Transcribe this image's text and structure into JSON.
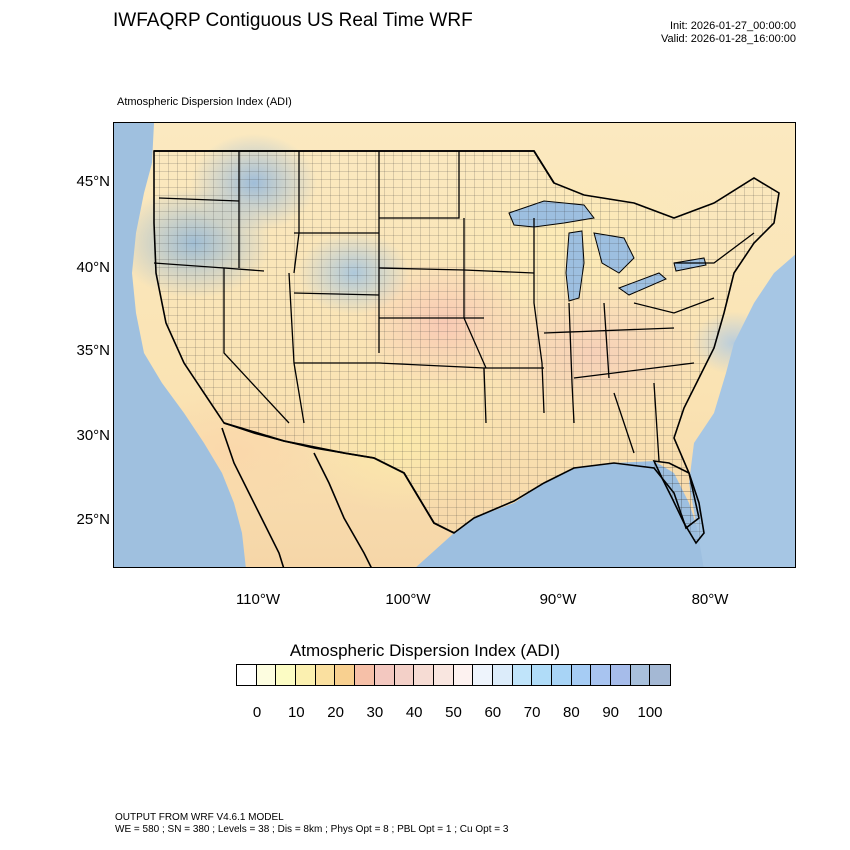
{
  "header": {
    "title": "IWFAQRP Contiguous US Real Time WRF",
    "init": "Init: 2026-01-27_00:00:00",
    "valid": "Valid: 2026-01-28_16:00:00",
    "subtitle": "Atmospheric Dispersion Index   (ADI)"
  },
  "axes": {
    "lat_labels": [
      "45°N",
      "40°N",
      "35°N",
      "30°N",
      "25°N"
    ],
    "lon_labels": [
      "110°W",
      "100°W",
      "90°W",
      "80°W"
    ]
  },
  "colorbar": {
    "title": "Atmospheric Dispersion Index  (ADI)",
    "labels": [
      "0",
      "10",
      "20",
      "30",
      "40",
      "50",
      "60",
      "70",
      "80",
      "90",
      "100"
    ],
    "colors": [
      "#ffffff",
      "#fdfde0",
      "#fcfcc4",
      "#fbf0b0",
      "#fae0a0",
      "#f8d090",
      "#f6c0a8",
      "#f3c8c0",
      "#f3d0c8",
      "#f6dcd4",
      "#f9e6e0",
      "#fdf2f0",
      "#eef4fc",
      "#dcecfa",
      "#c0e4fa",
      "#b0dcf8",
      "#a8d4f6",
      "#a6ccf4",
      "#a8c4f0",
      "#a6bcea",
      "#a8c0dc",
      "#a4b8d4"
    ]
  },
  "footer": {
    "line1": "OUTPUT FROM WRF V4.6.1 MODEL",
    "line2": "WE = 580 ; SN = 380 ; Levels = 38 ; Dis = 8km ; Phys Opt = 8 ; PBL Opt = 1 ; Cu Opt = 3"
  }
}
